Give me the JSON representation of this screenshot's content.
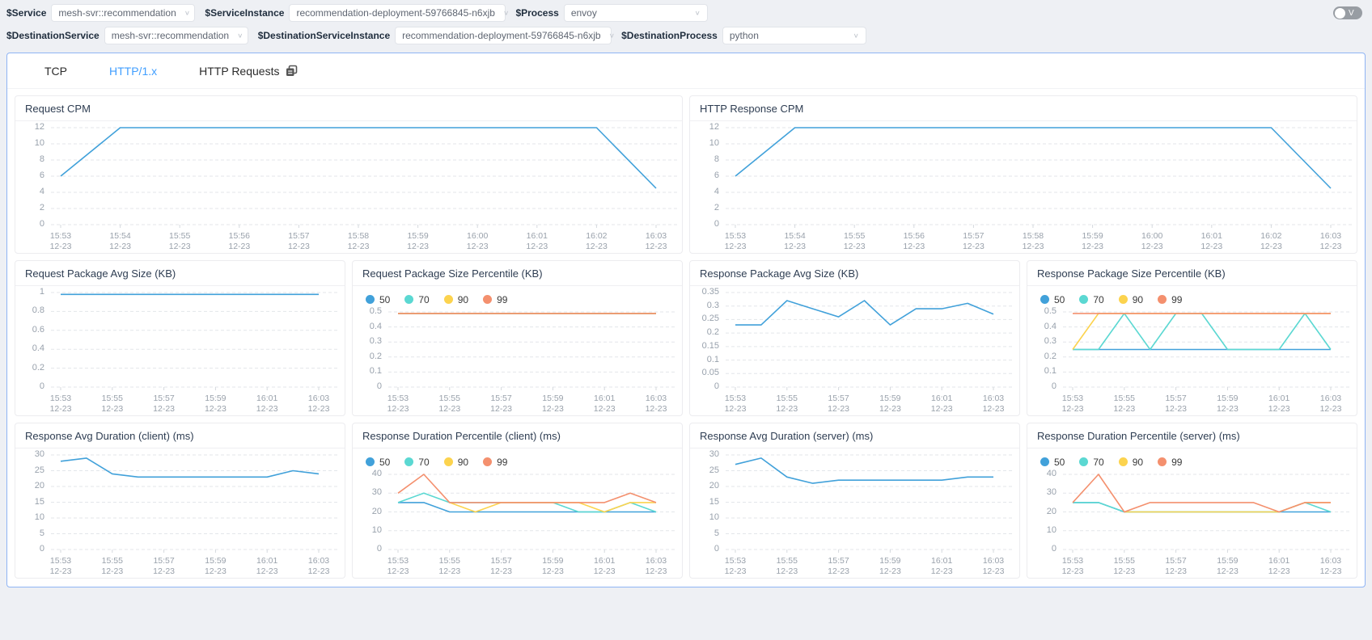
{
  "filters": {
    "rows": [
      [
        {
          "label": "$Service",
          "value": "mesh-svr::recommendation",
          "size": "s"
        },
        {
          "label": "$ServiceInstance",
          "value": "recommendation-deployment-59766845-n6xjb",
          "size": "l"
        },
        {
          "label": "$Process",
          "value": "envoy",
          "size": "s"
        }
      ],
      [
        {
          "label": "$DestinationService",
          "value": "mesh-svr::recommendation",
          "size": "s"
        },
        {
          "label": "$DestinationServiceInstance",
          "value": "recommendation-deployment-59766845-n6xjb",
          "size": "l"
        },
        {
          "label": "$DestinationProcess",
          "value": "python",
          "size": "s"
        }
      ]
    ],
    "toggle_label": "V"
  },
  "tabs": [
    {
      "label": "TCP",
      "active": false
    },
    {
      "label": "HTTP/1.x",
      "active": true
    },
    {
      "label": "HTTP Requests",
      "active": false,
      "icon": "copy-icon"
    }
  ],
  "colors": {
    "blue": "#41a1da",
    "teal": "#5bd8d2",
    "yellow": "#fcd34e",
    "orange": "#f4906e",
    "grid": "#e3e6ea",
    "tick": "#d5d9de",
    "axis_text": "#98a1ac",
    "active_tab": "#409eff"
  },
  "date_label": "12-23",
  "time_axis_full": [
    "15:53",
    "15:54",
    "15:55",
    "15:56",
    "15:57",
    "15:58",
    "15:59",
    "16:00",
    "16:01",
    "16:02",
    "16:03"
  ],
  "time_axis_sparse": [
    "15:53",
    "15:55",
    "15:57",
    "15:59",
    "16:01",
    "16:03"
  ],
  "chart_data": [
    {
      "type": "line",
      "title": "Request CPM",
      "row": 1,
      "x": "full",
      "yticks": [
        0,
        2,
        4,
        6,
        8,
        10,
        12
      ],
      "ylim": [
        0,
        12
      ],
      "grid": "dashed",
      "legend_position": "none",
      "series": [
        {
          "name": "Request CPM",
          "color": "blue",
          "values": [
            6,
            12,
            12,
            12,
            12,
            12,
            12,
            12,
            12,
            12,
            4.5
          ]
        }
      ]
    },
    {
      "type": "line",
      "title": "HTTP Response CPM",
      "row": 1,
      "x": "full",
      "yticks": [
        0,
        2,
        4,
        6,
        8,
        10,
        12
      ],
      "ylim": [
        0,
        12
      ],
      "grid": "dashed",
      "legend_position": "none",
      "series": [
        {
          "name": "HTTP Response CPM",
          "color": "blue",
          "values": [
            6,
            12,
            12,
            12,
            12,
            12,
            12,
            12,
            12,
            12,
            4.5
          ]
        }
      ]
    },
    {
      "type": "line",
      "title": "Request Package Avg Size (KB)",
      "row": 2,
      "x": "sparse",
      "yticks": [
        0,
        0.2,
        0.4,
        0.6,
        0.8,
        1
      ],
      "ylim": [
        0,
        1
      ],
      "grid": "dashed",
      "legend_position": "none",
      "series": [
        {
          "name": "Request Package Avg Size",
          "color": "blue",
          "values": [
            0.98,
            0.98,
            0.98,
            0.98,
            0.98,
            0.98,
            0.98,
            0.98,
            0.98,
            0.98,
            0.98
          ]
        }
      ]
    },
    {
      "type": "line",
      "title": "Request Package Size Percentile (KB)",
      "row": 2,
      "x": "sparse",
      "yticks": [
        0,
        0.1,
        0.2,
        0.3,
        0.4,
        0.5
      ],
      "ylim": [
        0,
        0.5
      ],
      "grid": "dashed",
      "legend_position": "top-left",
      "legend": [
        "50",
        "70",
        "90",
        "99"
      ],
      "series": [
        {
          "name": "50",
          "color": "blue",
          "values": [
            0.49,
            0.49,
            0.49,
            0.49,
            0.49,
            0.49,
            0.49,
            0.49,
            0.49,
            0.49,
            0.49
          ]
        },
        {
          "name": "70",
          "color": "teal",
          "values": [
            0.49,
            0.49,
            0.49,
            0.49,
            0.49,
            0.49,
            0.49,
            0.49,
            0.49,
            0.49,
            0.49
          ]
        },
        {
          "name": "90",
          "color": "yellow",
          "values": [
            0.49,
            0.49,
            0.49,
            0.49,
            0.49,
            0.49,
            0.49,
            0.49,
            0.49,
            0.49,
            0.49
          ]
        },
        {
          "name": "99",
          "color": "orange",
          "values": [
            0.49,
            0.49,
            0.49,
            0.49,
            0.49,
            0.49,
            0.49,
            0.49,
            0.49,
            0.49,
            0.49
          ]
        }
      ]
    },
    {
      "type": "line",
      "title": "Response Package Avg Size (KB)",
      "row": 2,
      "x": "sparse",
      "yticks": [
        0,
        0.05,
        0.1,
        0.15,
        0.2,
        0.25,
        0.3,
        0.35
      ],
      "ylim": [
        0,
        0.35
      ],
      "grid": "dashed",
      "legend_position": "none",
      "series": [
        {
          "name": "Response Package Avg Size",
          "color": "blue",
          "values": [
            0.23,
            0.23,
            0.32,
            0.29,
            0.26,
            0.32,
            0.23,
            0.29,
            0.29,
            0.31,
            0.27
          ]
        }
      ]
    },
    {
      "type": "line",
      "title": "Response Package Size Percentile (KB)",
      "row": 2,
      "x": "sparse",
      "yticks": [
        0,
        0.1,
        0.2,
        0.3,
        0.4,
        0.5
      ],
      "ylim": [
        0,
        0.5
      ],
      "grid": "dashed",
      "legend_position": "top-left",
      "legend": [
        "50",
        "70",
        "90",
        "99"
      ],
      "series": [
        {
          "name": "50",
          "color": "blue",
          "values": [
            0.25,
            0.25,
            0.25,
            0.25,
            0.25,
            0.25,
            0.25,
            0.25,
            0.25,
            0.25,
            0.25
          ]
        },
        {
          "name": "70",
          "color": "teal",
          "values": [
            0.25,
            0.25,
            0.49,
            0.25,
            0.49,
            0.49,
            0.25,
            0.25,
            0.25,
            0.49,
            0.25
          ]
        },
        {
          "name": "90",
          "color": "yellow",
          "values": [
            0.25,
            0.49,
            0.49,
            0.49,
            0.49,
            0.49,
            0.49,
            0.49,
            0.49,
            0.49,
            0.49
          ]
        },
        {
          "name": "99",
          "color": "orange",
          "values": [
            0.49,
            0.49,
            0.49,
            0.49,
            0.49,
            0.49,
            0.49,
            0.49,
            0.49,
            0.49,
            0.49
          ]
        }
      ]
    },
    {
      "type": "line",
      "title": "Response Avg Duration (client) (ms)",
      "row": 3,
      "x": "sparse",
      "yticks": [
        0,
        5,
        10,
        15,
        20,
        25,
        30
      ],
      "ylim": [
        0,
        30
      ],
      "grid": "dashed",
      "legend_position": "none",
      "series": [
        {
          "name": "Response Avg Duration (client)",
          "color": "blue",
          "values": [
            28,
            29,
            24,
            23,
            23,
            23,
            23,
            23,
            23,
            25,
            24
          ]
        }
      ]
    },
    {
      "type": "line",
      "title": "Response Duration Percentile (client) (ms)",
      "row": 3,
      "x": "sparse",
      "yticks": [
        0,
        10,
        20,
        30,
        40
      ],
      "ylim": [
        0,
        40
      ],
      "grid": "dashed",
      "legend_position": "top-left",
      "legend": [
        "50",
        "70",
        "90",
        "99"
      ],
      "series": [
        {
          "name": "50",
          "color": "blue",
          "values": [
            25,
            25,
            20,
            20,
            20,
            20,
            20,
            20,
            20,
            20,
            20
          ]
        },
        {
          "name": "70",
          "color": "teal",
          "values": [
            25,
            30,
            25,
            25,
            25,
            25,
            25,
            20,
            20,
            25,
            20
          ]
        },
        {
          "name": "90",
          "color": "yellow",
          "values": [
            null,
            null,
            25,
            20,
            25,
            25,
            25,
            25,
            20,
            25,
            25
          ]
        },
        {
          "name": "99",
          "color": "orange",
          "values": [
            30,
            40,
            25,
            25,
            25,
            25,
            25,
            25,
            25,
            30,
            25
          ]
        }
      ]
    },
    {
      "type": "line",
      "title": "Response Avg Duration (server) (ms)",
      "row": 3,
      "x": "sparse",
      "yticks": [
        0,
        5,
        10,
        15,
        20,
        25,
        30
      ],
      "ylim": [
        0,
        30
      ],
      "grid": "dashed",
      "legend_position": "none",
      "series": [
        {
          "name": "Response Avg Duration (server)",
          "color": "blue",
          "values": [
            27,
            29,
            23,
            21,
            22,
            22,
            22,
            22,
            22,
            23,
            23
          ]
        }
      ]
    },
    {
      "type": "line",
      "title": "Response Duration Percentile (server) (ms)",
      "row": 3,
      "x": "sparse",
      "yticks": [
        0,
        10,
        20,
        30,
        40
      ],
      "ylim": [
        0,
        40
      ],
      "grid": "dashed",
      "legend_position": "top-left",
      "legend": [
        "50",
        "70",
        "90",
        "99"
      ],
      "series": [
        {
          "name": "50",
          "color": "blue",
          "values": [
            25,
            25,
            20,
            20,
            20,
            20,
            20,
            20,
            20,
            20,
            20
          ]
        },
        {
          "name": "70",
          "color": "teal",
          "values": [
            25,
            25,
            20,
            20,
            20,
            20,
            20,
            20,
            20,
            25,
            20
          ]
        },
        {
          "name": "90",
          "color": "yellow",
          "values": [
            null,
            null,
            20,
            20,
            20,
            20,
            20,
            20,
            20,
            25,
            25
          ]
        },
        {
          "name": "99",
          "color": "orange",
          "values": [
            25,
            40,
            20,
            25,
            25,
            25,
            25,
            25,
            20,
            25,
            25
          ]
        }
      ]
    }
  ]
}
